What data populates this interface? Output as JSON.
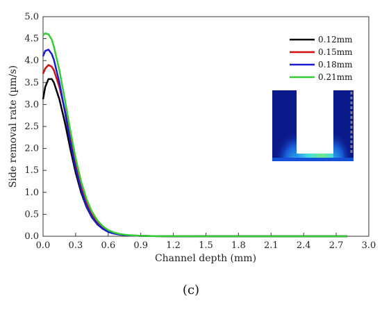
{
  "caption": "(c)",
  "chart_data": {
    "type": "line",
    "title": "",
    "xlabel": "Channel depth (mm)",
    "ylabel": "Side removal rate (µm/s)",
    "xlim": [
      0.0,
      3.0
    ],
    "ylim": [
      0.0,
      5.0
    ],
    "xticks": [
      "0.0",
      "0.3",
      "0.6",
      "0.9",
      "1.2",
      "1.5",
      "1.8",
      "2.1",
      "2.4",
      "2.7",
      "3.0"
    ],
    "yticks": [
      "0.0",
      "0.5",
      "1.0",
      "1.5",
      "2.0",
      "2.5",
      "3.0",
      "3.5",
      "4.0",
      "4.5",
      "5.0"
    ],
    "grid": false,
    "legend_position": "top-right",
    "series": [
      {
        "name": "0.12mm",
        "color": "#000000",
        "x": [
          0.0,
          0.02,
          0.05,
          0.08,
          0.1,
          0.15,
          0.2,
          0.25,
          0.3,
          0.35,
          0.4,
          0.45,
          0.5,
          0.55,
          0.6,
          0.65,
          0.7,
          0.75,
          0.8,
          0.9,
          1.0,
          1.1,
          1.2,
          1.5,
          2.0,
          2.5,
          2.8
        ],
        "y": [
          3.12,
          3.4,
          3.58,
          3.58,
          3.5,
          3.12,
          2.6,
          2.0,
          1.45,
          1.0,
          0.67,
          0.43,
          0.27,
          0.17,
          0.1,
          0.065,
          0.042,
          0.028,
          0.018,
          0.008,
          0.004,
          0.002,
          0.0,
          0.0,
          0.0,
          0.0,
          0.0
        ]
      },
      {
        "name": "0.15mm",
        "color": "#d01010",
        "x": [
          0.0,
          0.02,
          0.05,
          0.08,
          0.1,
          0.15,
          0.2,
          0.25,
          0.3,
          0.35,
          0.4,
          0.45,
          0.5,
          0.55,
          0.6,
          0.65,
          0.7,
          0.75,
          0.8,
          0.9,
          1.0,
          1.1,
          1.2,
          1.5,
          2.0,
          2.5,
          2.8
        ],
        "y": [
          3.7,
          3.82,
          3.9,
          3.86,
          3.78,
          3.4,
          2.88,
          2.25,
          1.66,
          1.15,
          0.77,
          0.5,
          0.32,
          0.2,
          0.12,
          0.075,
          0.048,
          0.031,
          0.02,
          0.009,
          0.004,
          0.002,
          0.0,
          0.0,
          0.0,
          0.0,
          0.0
        ]
      },
      {
        "name": "0.18mm",
        "color": "#1a1ad0",
        "x": [
          0.0,
          0.02,
          0.05,
          0.08,
          0.1,
          0.15,
          0.2,
          0.25,
          0.3,
          0.35,
          0.4,
          0.45,
          0.5,
          0.55,
          0.6,
          0.65,
          0.7,
          0.75,
          0.8,
          0.9,
          1.0,
          1.1,
          1.2,
          1.5,
          2.0,
          2.5,
          2.8
        ],
        "y": [
          4.1,
          4.22,
          4.25,
          4.15,
          4.02,
          3.5,
          2.85,
          2.15,
          1.54,
          1.05,
          0.69,
          0.44,
          0.28,
          0.17,
          0.1,
          0.064,
          0.04,
          0.026,
          0.017,
          0.008,
          0.004,
          0.002,
          0.0,
          0.0,
          0.0,
          0.0,
          0.0
        ]
      },
      {
        "name": "0.21mm",
        "color": "#33cc33",
        "x": [
          0.0,
          0.02,
          0.05,
          0.08,
          0.1,
          0.15,
          0.2,
          0.25,
          0.3,
          0.35,
          0.4,
          0.45,
          0.5,
          0.55,
          0.6,
          0.65,
          0.7,
          0.75,
          0.8,
          0.9,
          1.0,
          1.1,
          1.2,
          1.5,
          2.0,
          2.5,
          2.8
        ],
        "y": [
          4.58,
          4.62,
          4.6,
          4.48,
          4.32,
          3.78,
          3.12,
          2.42,
          1.78,
          1.25,
          0.85,
          0.56,
          0.36,
          0.23,
          0.14,
          0.088,
          0.056,
          0.036,
          0.023,
          0.01,
          0.005,
          0.002,
          0.001,
          0.0,
          0.0,
          0.0,
          0.0
        ]
      }
    ]
  },
  "inset": {
    "description": "simulation-field-inset",
    "colors": {
      "field_dark": "#0b1a8a",
      "field_mid": "#1a5ee6",
      "field_hot": "#3fd9e8",
      "field_peak": "#6fe88a"
    }
  }
}
